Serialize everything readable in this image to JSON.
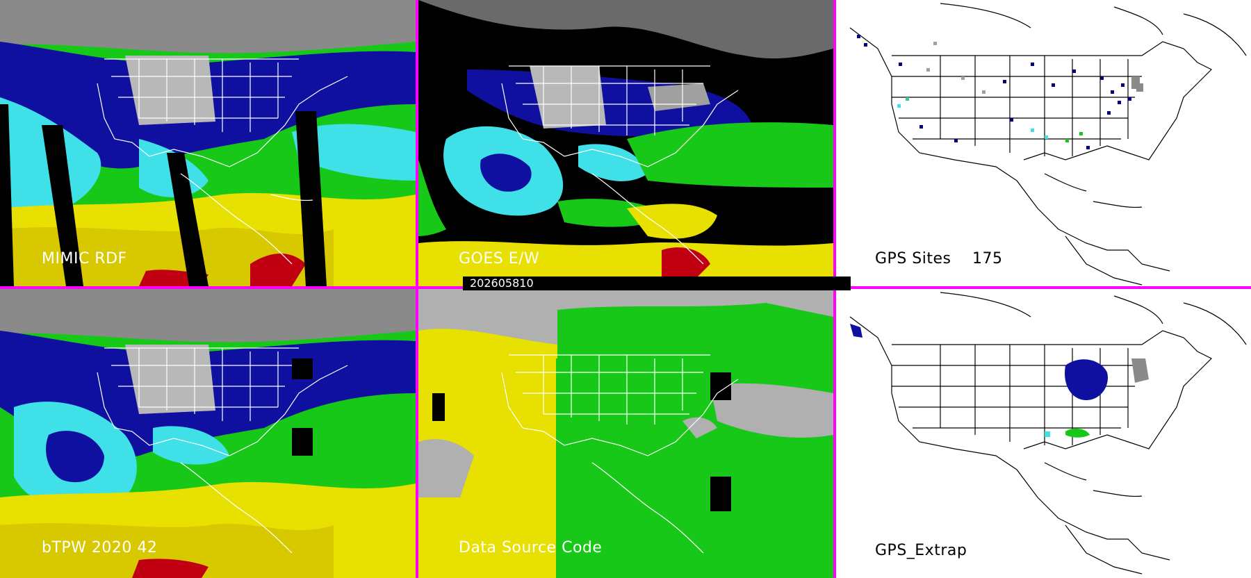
{
  "timestamp": "202605810",
  "panels": [
    {
      "id": "mimic",
      "label": "MIMIC RDF",
      "kind": "tpw"
    },
    {
      "id": "goes",
      "label": "GOES E/W",
      "kind": "goes"
    },
    {
      "id": "gps-sites",
      "label": "GPS Sites",
      "count": "175",
      "kind": "gps"
    },
    {
      "id": "btpw",
      "label": "bTPW 2020 42",
      "kind": "tpw"
    },
    {
      "id": "dsc",
      "label": "Data Source Code",
      "kind": "dsc"
    },
    {
      "id": "gps-extrap",
      "label": "GPS_Extrap",
      "kind": "gps"
    }
  ],
  "colors": {
    "border": "#ff00ff",
    "ocean_black": "#000000",
    "blue": "#1010a0",
    "cyan": "#40e0e8",
    "green": "#18c818",
    "yellow": "#e8e000",
    "red": "#c00010",
    "gray": "#b0b0b0",
    "land_white": "#ffffff"
  }
}
